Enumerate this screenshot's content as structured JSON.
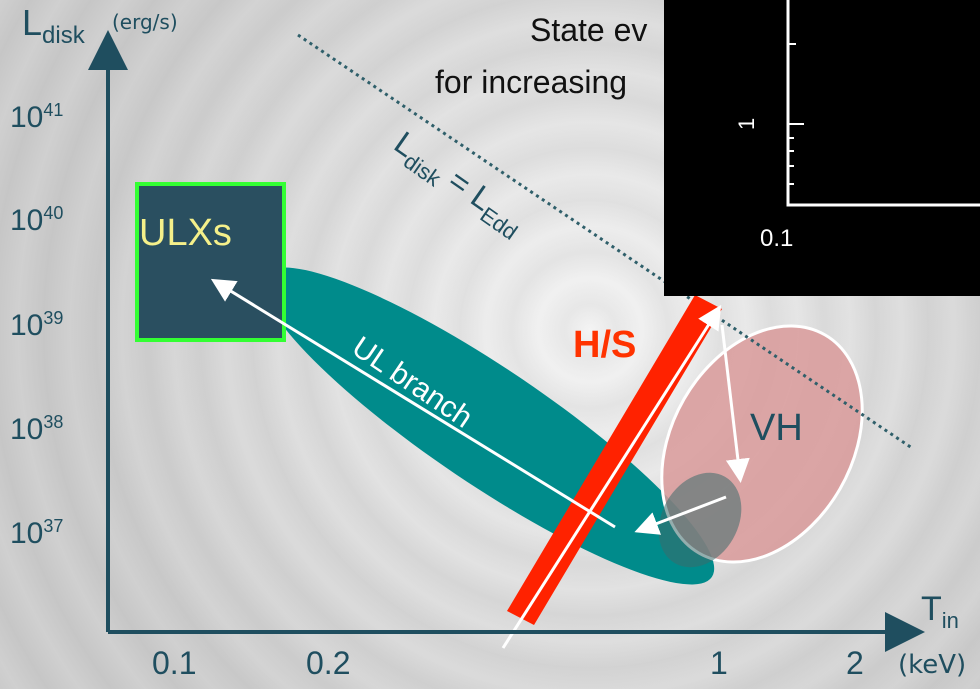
{
  "y_axis": {
    "label_main": "L",
    "label_sub": "disk",
    "unit": "(erg/s)",
    "ticks": [
      {
        "base": "10",
        "exp": "41"
      },
      {
        "base": "10",
        "exp": "40"
      },
      {
        "base": "10",
        "exp": "39"
      },
      {
        "base": "10",
        "exp": "38"
      },
      {
        "base": "10",
        "exp": "37"
      }
    ]
  },
  "x_axis": {
    "label_main": "T",
    "label_sub": "in",
    "unit": "(keV)",
    "ticks": [
      "0.1",
      "0.2",
      "1",
      "2"
    ]
  },
  "title_line1": "State ev",
  "title_line2": "for increasing",
  "eddington_label": {
    "main": "L",
    "sub1": "disk",
    "eq": " = L",
    "sub2": "Edd"
  },
  "regions": {
    "ulx": "ULXs",
    "ul_branch": "UL branch",
    "hs": "H/S",
    "vh": "VH"
  },
  "inset": {
    "tick_label": "0.1",
    "y_label": "1"
  },
  "colors": {
    "teal": "#008b8b",
    "ulx_fill": "#2a4f60",
    "ulx_border": "#33ff33",
    "ulx_text": "#f5f08a",
    "hs_red": "#ff2200",
    "vh_fill": "#d99a9a",
    "axis": "#1f4e5f"
  }
}
